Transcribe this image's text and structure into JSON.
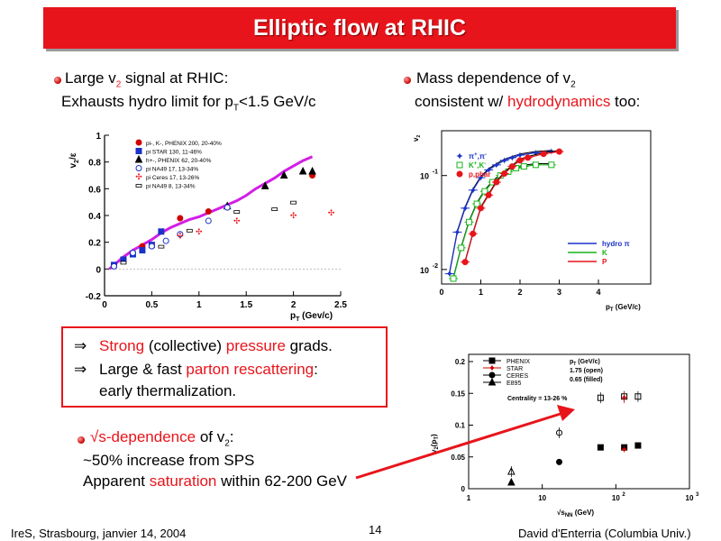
{
  "title": "Elliptic flow at RHIC",
  "left_block": {
    "line1_pre": "Large v",
    "line1_sub": "2",
    "line1_post": " signal at RHIC:",
    "line2_pre": "Exhausts hydro limit for p",
    "line2_sub": "T",
    "line2_post": "<1.5 GeV/c"
  },
  "right_block": {
    "line1_pre": "Mass dependence of v",
    "line1_sub": "2",
    "line2_pre": "consistent w/ ",
    "line2_red": "hydrodynamics",
    "line2_post": " too:"
  },
  "claims": {
    "arrow": "⇒",
    "c1_red1": "Strong",
    "c1_mid": " (collective) ",
    "c1_red2": "pressure",
    "c1_post": " grads.",
    "c2_pre": "Large & fast ",
    "c2_red": "parton rescattering",
    "c2_post": ":",
    "c3": "early thermalization."
  },
  "sqrt_block": {
    "line1_red": "√s-dependence",
    "line1_mid": " of v",
    "line1_sub": "2",
    "line1_post": ":",
    "line2": "~50% increase from SPS",
    "line3_pre": "Apparent ",
    "line3_red": "saturation",
    "line3_post": " within 62-200 GeV"
  },
  "footer": {
    "left": "IreS, Strasbourg, janvier 14, 2004",
    "page": "14",
    "right": "David d'Enterria (Columbia Univ.)"
  },
  "colors": {
    "accent": "#e8141b",
    "magenta": "#d21ee6",
    "blue": "#1a32c8",
    "green": "#18b418"
  },
  "chart_data": [
    {
      "type": "scatter",
      "ylabel_main": "v",
      "ylabel_sub": "2",
      "ylabel_post": "/ε",
      "xlabel_main": "p",
      "xlabel_sub": "T",
      "xlabel_post": " (Gev/c)",
      "xlim": [
        0,
        2.5
      ],
      "ylim": [
        -0.2,
        1.0
      ],
      "xticks": [
        "0",
        "0.5",
        "1",
        "1.5",
        "2",
        "2.5"
      ],
      "yticks": [
        "-0.2",
        "0",
        "0.2",
        "0.4",
        "0.6",
        "0.8",
        "1"
      ],
      "legend": [
        "pi-, K-, PHENIX 200, 20-40%",
        "pi STAR 130, 11-46%",
        "h+-, PHENIX 62, 20-40%",
        "pi NA49 17, 13-34%",
        "pi Ceres 17, 13-26%",
        "pi NA49 8, 13-34%"
      ],
      "series": [
        {
          "x": [
            0.05,
            0.1,
            0.2,
            0.3,
            0.4,
            0.5,
            0.6,
            0.7,
            0.8,
            0.9,
            1.0,
            1.1,
            1.2,
            1.3,
            1.4,
            1.5,
            1.6,
            1.7,
            1.8,
            1.9,
            2.0,
            2.1,
            2.2
          ],
          "y": [
            0.0,
            0.03,
            0.09,
            0.14,
            0.18,
            0.22,
            0.27,
            0.31,
            0.34,
            0.37,
            0.39,
            0.42,
            0.45,
            0.48,
            0.51,
            0.55,
            0.6,
            0.64,
            0.68,
            0.73,
            0.77,
            0.81,
            0.84
          ]
        },
        {
          "x": [
            0.4,
            0.8,
            1.1,
            2.2
          ],
          "y": [
            0.17,
            0.38,
            0.43,
            0.7
          ]
        },
        {
          "x": [
            0.1,
            0.2,
            0.3,
            0.4,
            0.5,
            0.6
          ],
          "y": [
            0.03,
            0.07,
            0.11,
            0.14,
            0.18,
            0.28
          ]
        },
        {
          "x": [
            1.3,
            1.7,
            1.9,
            2.1,
            2.2
          ],
          "y": [
            0.47,
            0.62,
            0.7,
            0.73,
            0.73
          ]
        },
        {
          "x": [
            0.1,
            0.3,
            0.5,
            0.65,
            0.8,
            1.1,
            1.3
          ],
          "y": [
            0.02,
            0.12,
            0.17,
            0.21,
            0.26,
            0.36,
            0.46
          ]
        },
        {
          "x": [
            0.8,
            1.0,
            1.4,
            2.0,
            2.4
          ],
          "y": [
            0.25,
            0.28,
            0.36,
            0.4,
            0.42
          ]
        },
        {
          "x": [
            0.2,
            0.6,
            0.9,
            1.4,
            1.8,
            2.0
          ],
          "y": [
            0.05,
            0.17,
            0.29,
            0.43,
            0.45,
            0.5
          ]
        }
      ]
    },
    {
      "type": "line",
      "ylabel": "v",
      "ylabel_sub": "2",
      "xlabel_main": "p",
      "xlabel_sub": "T",
      "xlabel_post": " (GeV/c)",
      "xlim": [
        0,
        4
      ],
      "yscale": "log",
      "xticks": [
        "0",
        "1",
        "2",
        "3",
        "4"
      ],
      "yticks_main": [
        "10",
        "10"
      ],
      "yticks_exp": [
        "-1",
        "-2"
      ],
      "legend_markers": [
        {
          "sym": "π",
          "sup": "+",
          "sym2": ",π",
          "sup2": "-"
        },
        {
          "sym": "K",
          "sup": "+",
          "sym2": ",K",
          "sup2": "-"
        },
        {
          "sym": "p,pbar",
          "sup": "",
          "sym2": "",
          "sup2": ""
        }
      ],
      "legend_lines": [
        "hydro π",
        "K",
        "P"
      ],
      "series": [
        {
          "x": [
            0.2,
            0.4,
            0.6,
            0.8,
            1.0,
            1.2,
            1.4,
            1.6,
            1.8,
            2.0,
            2.4,
            2.8
          ],
          "y": [
            0.009,
            0.025,
            0.045,
            0.07,
            0.095,
            0.115,
            0.13,
            0.145,
            0.155,
            0.165,
            0.175,
            0.18
          ]
        },
        {
          "x": [
            0.3,
            0.5,
            0.7,
            0.9,
            1.1,
            1.3,
            1.5,
            1.7,
            1.9,
            2.1,
            2.4,
            2.8
          ],
          "y": [
            0.008,
            0.017,
            0.032,
            0.05,
            0.068,
            0.085,
            0.1,
            0.11,
            0.12,
            0.125,
            0.13,
            0.13
          ]
        },
        {
          "x": [
            0.6,
            0.8,
            1.0,
            1.2,
            1.4,
            1.6,
            1.8,
            2.0,
            2.2,
            2.6,
            3.0
          ],
          "y": [
            0.012,
            0.024,
            0.045,
            0.062,
            0.085,
            0.105,
            0.125,
            0.145,
            0.155,
            0.17,
            0.18
          ]
        }
      ]
    },
    {
      "type": "scatter",
      "ylabel": "v",
      "ylabel_sub": "2",
      "ylabel_mid": "(p",
      "ylabel_sub2": "T",
      "ylabel_post": ")",
      "xlabel_sqrt": "√s",
      "xlabel_sub": "NN",
      "xlabel_post": " (GeV)",
      "xscale": "log",
      "xlim": [
        1,
        1000
      ],
      "ylim": [
        0,
        0.2
      ],
      "xticks_main": [
        "1",
        "10",
        "10",
        "10"
      ],
      "xticks_exp": [
        "",
        "",
        "2",
        "3"
      ],
      "yticks": [
        "0",
        "0.05",
        "0.1",
        "0.15",
        "0.2"
      ],
      "legend": [
        "PHENIX",
        "STAR",
        "CERES",
        "E895"
      ],
      "annotation": {
        "l1_pre": "p",
        "l1_sub": "T",
        "l1_post": " (GeV/c)",
        "l2": "1.75 (open)",
        "l3": "0.65 (filled)"
      },
      "centrality": "Centrality = 13-26 %",
      "series": [
        {
          "name": "PHENIX",
          "x": [
            62,
            130,
            200
          ],
          "filled_y": [
            0.065,
            0.065,
            0.068
          ],
          "open_y": [
            0.143,
            0.145,
            0.145
          ]
        },
        {
          "name": "STAR",
          "x": [
            130
          ],
          "filled_y": [
            0.062
          ],
          "open_y": [
            0.143
          ]
        },
        {
          "name": "CERES",
          "x": [
            17
          ],
          "filled_y": [
            0.042
          ],
          "open_y": [
            0.088
          ]
        },
        {
          "name": "E895",
          "x": [
            3.8
          ],
          "filled_y": [
            0.01
          ],
          "open_y": [
            0.027
          ]
        }
      ]
    }
  ]
}
